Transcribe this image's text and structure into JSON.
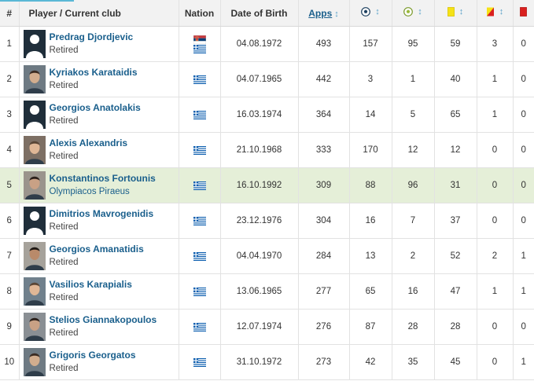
{
  "headers": {
    "rank": "#",
    "player": "Player / Current club",
    "nation": "Nation",
    "dob": "Date of Birth",
    "apps": "Apps",
    "sort_glyph": "↕"
  },
  "icons": {
    "goals": "goals-ball-icon",
    "assists": "assists-ball-icon",
    "yellow": "yellow-card-icon",
    "second_yellow": "second-yellow-card-icon",
    "red": "red-card-icon"
  },
  "colors": {
    "link": "#1a5f8c",
    "highlight": "#e5efd8",
    "header_bg": "#f2f2f2"
  },
  "rows": [
    {
      "rank": "1",
      "name": "Predrag Djordjevic",
      "club": "Retired",
      "flags": [
        "serbia",
        "greece"
      ],
      "dob": "04.08.1972",
      "apps": "493",
      "goals": "157",
      "assists": "95",
      "yellow": "59",
      "second_yellow": "3",
      "red": "0",
      "avatar": "placeholder"
    },
    {
      "rank": "2",
      "name": "Kyriakos Karataidis",
      "club": "Retired",
      "flags": [
        "greece"
      ],
      "dob": "04.07.1965",
      "apps": "442",
      "goals": "3",
      "assists": "1",
      "yellow": "40",
      "second_yellow": "1",
      "red": "0",
      "avatar": "photo"
    },
    {
      "rank": "3",
      "name": "Georgios Anatolakis",
      "club": "Retired",
      "flags": [
        "greece"
      ],
      "dob": "16.03.1974",
      "apps": "364",
      "goals": "14",
      "assists": "5",
      "yellow": "65",
      "second_yellow": "1",
      "red": "0",
      "avatar": "placeholder"
    },
    {
      "rank": "4",
      "name": "Alexis Alexandris",
      "club": "Retired",
      "flags": [
        "greece"
      ],
      "dob": "21.10.1968",
      "apps": "333",
      "goals": "170",
      "assists": "12",
      "yellow": "12",
      "second_yellow": "0",
      "red": "0",
      "avatar": "photo"
    },
    {
      "rank": "5",
      "name": "Konstantinos Fortounis",
      "club": "Olympiacos Piraeus",
      "flags": [
        "greece"
      ],
      "dob": "16.10.1992",
      "apps": "309",
      "goals": "88",
      "assists": "96",
      "yellow": "31",
      "second_yellow": "0",
      "red": "0",
      "avatar": "photo",
      "highlight": true
    },
    {
      "rank": "6",
      "name": "Dimitrios Mavrogenidis",
      "club": "Retired",
      "flags": [
        "greece"
      ],
      "dob": "23.12.1976",
      "apps": "304",
      "goals": "16",
      "assists": "7",
      "yellow": "37",
      "second_yellow": "0",
      "red": "0",
      "avatar": "placeholder"
    },
    {
      "rank": "7",
      "name": "Georgios Amanatidis",
      "club": "Retired",
      "flags": [
        "greece"
      ],
      "dob": "04.04.1970",
      "apps": "284",
      "goals": "13",
      "assists": "2",
      "yellow": "52",
      "second_yellow": "2",
      "red": "1",
      "avatar": "photo"
    },
    {
      "rank": "8",
      "name": "Vasilios Karapialis",
      "club": "Retired",
      "flags": [
        "greece"
      ],
      "dob": "13.06.1965",
      "apps": "277",
      "goals": "65",
      "assists": "16",
      "yellow": "47",
      "second_yellow": "1",
      "red": "1",
      "avatar": "photo"
    },
    {
      "rank": "9",
      "name": "Stelios Giannakopoulos",
      "club": "Retired",
      "flags": [
        "greece"
      ],
      "dob": "12.07.1974",
      "apps": "276",
      "goals": "87",
      "assists": "28",
      "yellow": "28",
      "second_yellow": "0",
      "red": "0",
      "avatar": "photo"
    },
    {
      "rank": "10",
      "name": "Grigoris Georgatos",
      "club": "Retired",
      "flags": [
        "greece"
      ],
      "dob": "31.10.1972",
      "apps": "273",
      "goals": "42",
      "assists": "35",
      "yellow": "45",
      "second_yellow": "0",
      "red": "1",
      "avatar": "photo"
    }
  ]
}
